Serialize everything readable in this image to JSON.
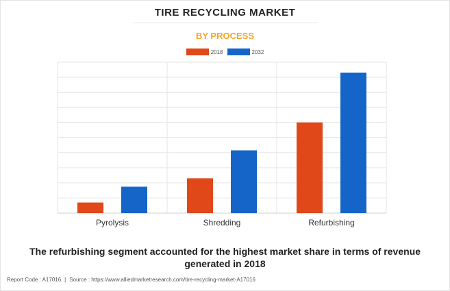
{
  "chart_data": {
    "type": "bar",
    "title": "TIRE RECYCLING MARKET",
    "subtitle": "BY PROCESS",
    "categories": [
      "Pyrolysis",
      "Shredding",
      "Refurbishing"
    ],
    "series": [
      {
        "name": "2018",
        "color": "#e0481a",
        "values": [
          0.7,
          2.3,
          6.0
        ]
      },
      {
        "name": "2032",
        "color": "#1565c8",
        "values": [
          1.75,
          4.15,
          9.3
        ]
      }
    ],
    "ylim": [
      0,
      10
    ],
    "grid": true,
    "legend": "top-center",
    "xlabel": "",
    "ylabel": ""
  },
  "caption": "The refurbishing segment accounted for the highest market share in terms of revenue generated in 2018",
  "footer": {
    "report_code": "Report Code : A17016",
    "separator": "|",
    "source": "Source : https://www.alliedmarketresearch.com/tire-recycling-market-A17016"
  }
}
